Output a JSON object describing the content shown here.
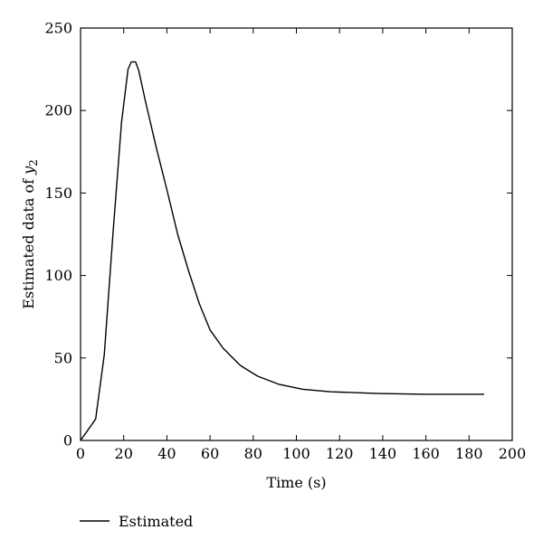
{
  "chart_data": {
    "type": "line",
    "xlabel": "Time (s)",
    "ylabel_prefix": "Estimated data of ",
    "ylabel_var": "y",
    "ylabel_sub": "2",
    "xlim": [
      0,
      200
    ],
    "ylim": [
      0,
      250
    ],
    "xticks": [
      0,
      20,
      40,
      60,
      80,
      100,
      120,
      140,
      160,
      180,
      200
    ],
    "yticks": [
      0,
      50,
      100,
      150,
      200,
      250
    ],
    "grid": false,
    "legend_position": "bottom-left",
    "series": [
      {
        "name": "Estimated",
        "color": "#000000",
        "x": [
          0,
          7,
          11,
          15,
          19,
          22,
          23.5,
          25.5,
          27,
          30,
          35,
          40,
          45,
          50,
          55,
          60,
          66,
          74,
          82,
          92,
          103,
          116,
          138,
          160,
          187
        ],
        "y": [
          0,
          13,
          52,
          125,
          193,
          225,
          229.5,
          229.5,
          224,
          206,
          178,
          152,
          125,
          103,
          83,
          67,
          56,
          45.5,
          39,
          34,
          31,
          29.5,
          28.5,
          28,
          28
        ]
      }
    ]
  }
}
